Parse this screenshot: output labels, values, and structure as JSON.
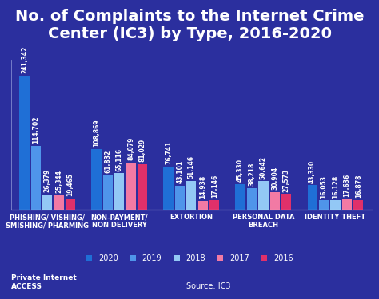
{
  "chart_data": {
    "type": "bar",
    "title": "No. of Complaints to the Internet Crime Center (IC3) by Type, 2016-2020",
    "categories": [
      "PHISHING/ VISHING/\nSMISHING/ PHARMING",
      "NON-PAYMENT/\nNON DELIVERY",
      "EXTORTION",
      "PERSONAL DATA\nBREACH",
      "IDENTITY THEFT"
    ],
    "series": [
      {
        "name": "2020",
        "color": "#1f6fd6",
        "values": [
          241342,
          108869,
          76741,
          45330,
          43330
        ],
        "value_labels": [
          "241,342",
          "108,869",
          "76,741",
          "45,330",
          "43,330"
        ]
      },
      {
        "name": "2019",
        "color": "#4f95ea",
        "values": [
          114702,
          61832,
          43101,
          38218,
          16053
        ],
        "value_labels": [
          "114,702",
          "61,832",
          "43,101",
          "38,218",
          "16,053"
        ]
      },
      {
        "name": "2018",
        "color": "#93c8f5",
        "values": [
          26379,
          65116,
          51146,
          50642,
          16128
        ],
        "value_labels": [
          "26,379",
          "65,116",
          "51,146",
          "50,642",
          "16,128"
        ]
      },
      {
        "name": "2017",
        "color": "#f27aa4",
        "values": [
          25344,
          84079,
          14938,
          30904,
          17636
        ],
        "value_labels": [
          "25,344",
          "84,079",
          "14,938",
          "30,904",
          "17,636"
        ]
      },
      {
        "name": "2016",
        "color": "#e0306a",
        "values": [
          19465,
          81029,
          17146,
          27573,
          16878
        ],
        "value_labels": [
          "19,465",
          "81,029",
          "17,146",
          "27,573",
          "16,878"
        ]
      }
    ],
    "ylim": [
      0,
      270000
    ],
    "yticks": [],
    "tick_labels": "x",
    "data_labels": true,
    "legend": "lower center",
    "grid": false,
    "annotations": [
      "Source: IC3",
      "Private Internet\nACCESS"
    ]
  }
}
